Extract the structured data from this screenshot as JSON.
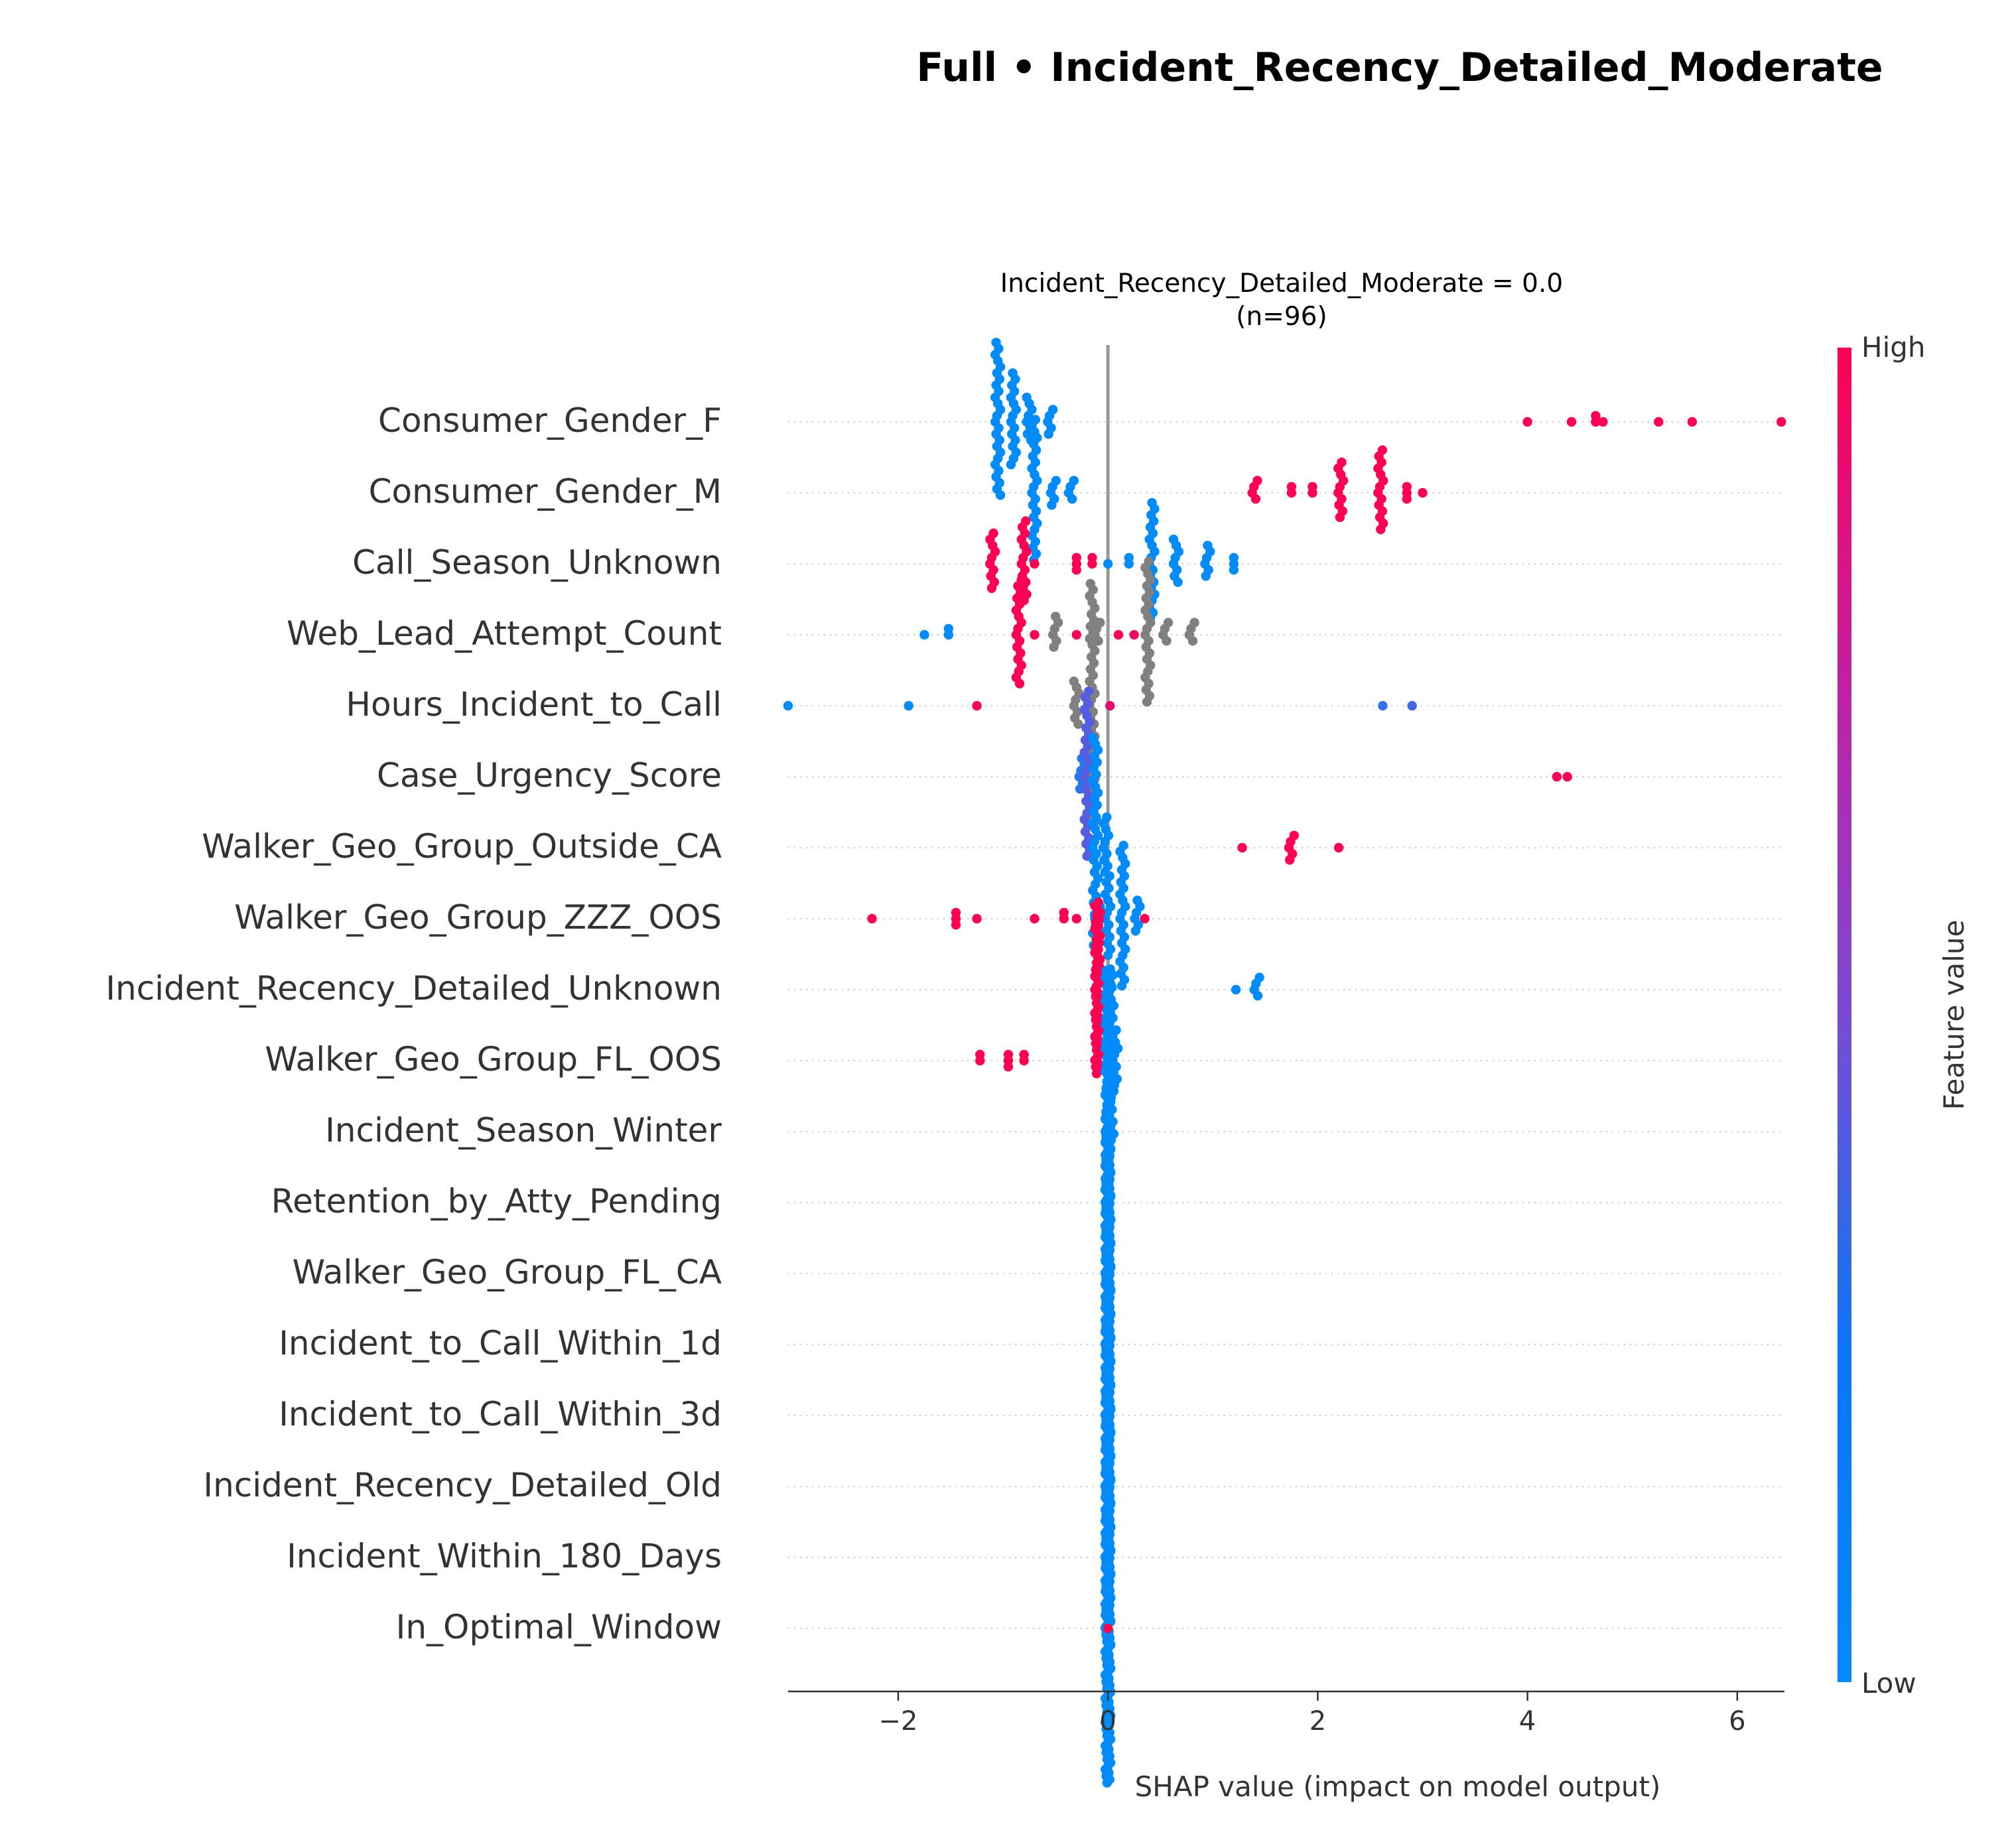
{
  "figure": {
    "suptitle": "Full • Incident_Recency_Detailed_Moderate"
  },
  "chart_data": {
    "type": "scatter",
    "subtype": "shap-beeswarm",
    "title_line1": "Incident_Recency_Detailed_Moderate = 0.0",
    "title_line2": "(n=96)",
    "xlabel": "SHAP value (impact on model output)",
    "xlim": [
      -3.05,
      6.45
    ],
    "xticks": [
      -2,
      0,
      2,
      4,
      6
    ],
    "xtick_labels": [
      "−2",
      "0",
      "2",
      "4",
      "6"
    ],
    "grid": false,
    "zero_line": true,
    "colorbar": {
      "label": "Feature value",
      "high_label": "High",
      "low_label": "Low",
      "low_color": "#008bfb",
      "high_color": "#ff0052"
    },
    "missing_color": "#808080",
    "features": [
      {
        "name": "Consumer_Gender_F",
        "groups": [
          {
            "c": 0.0,
            "pts": [
              [
                -1.05,
                26
              ],
              [
                -0.9,
                16
              ],
              [
                -0.75,
                8
              ],
              [
                -0.55,
                5
              ]
            ]
          },
          {
            "c": 1.0,
            "pts": [
              [
                4.0,
                1
              ],
              [
                4.42,
                1
              ],
              [
                4.65,
                2
              ],
              [
                4.72,
                1
              ],
              [
                5.25,
                1
              ],
              [
                5.57,
                1
              ],
              [
                6.42,
                1
              ]
            ]
          }
        ]
      },
      {
        "name": "Consumer_Gender_M",
        "groups": [
          {
            "c": 0.0,
            "pts": [
              [
                -0.7,
                24
              ],
              [
                -0.52,
                5
              ],
              [
                -0.35,
                4
              ]
            ]
          },
          {
            "c": 1.0,
            "pts": [
              [
                1.4,
                4
              ],
              [
                1.75,
                2
              ],
              [
                1.95,
                2
              ],
              [
                2.22,
                10
              ],
              [
                2.6,
                14
              ],
              [
                2.85,
                3
              ],
              [
                3.0,
                1
              ]
            ]
          }
        ]
      },
      {
        "name": "Call_Season_Unknown",
        "groups": [
          {
            "c": 1.0,
            "pts": [
              [
                -1.1,
                10
              ],
              [
                -0.8,
                14
              ],
              [
                -0.7,
                1
              ],
              [
                -0.3,
                3
              ],
              [
                -0.15,
                2
              ]
            ]
          },
          {
            "c": 0.0,
            "pts": [
              [
                0.0,
                1
              ],
              [
                0.2,
                2
              ],
              [
                0.42,
                20
              ],
              [
                0.65,
                8
              ],
              [
                0.95,
                6
              ],
              [
                1.2,
                3
              ]
            ]
          }
        ]
      },
      {
        "name": "Web_Lead_Attempt_Count",
        "groups": [
          {
            "c": 0.0,
            "pts": [
              [
                -1.75,
                1
              ],
              [
                -1.52,
                2
              ]
            ]
          },
          {
            "c": 1.0,
            "pts": [
              [
                -0.85,
                18
              ],
              [
                -0.7,
                1
              ],
              [
                -0.3,
                1
              ],
              [
                0.1,
                1
              ]
            ]
          },
          {
            "c": null,
            "pts": [
              [
                -0.5,
                6
              ],
              [
                -0.1,
                4
              ],
              [
                0.38,
                24
              ],
              [
                0.55,
                4
              ],
              [
                0.8,
                4
              ]
            ]
          },
          {
            "c": 0.92,
            "pts": [
              [
                0.25,
                1
              ]
            ]
          }
        ]
      },
      {
        "name": "Hours_Incident_to_Call",
        "groups": [
          {
            "c": 0.0,
            "pts": [
              [
                -3.05,
                1
              ],
              [
                -1.9,
                1
              ]
            ]
          },
          {
            "c": 1.0,
            "pts": [
              [
                -1.25,
                1
              ]
            ]
          },
          {
            "c": null,
            "pts": [
              [
                -0.15,
                40
              ],
              [
                -0.3,
                8
              ]
            ]
          },
          {
            "c": 0.9,
            "pts": [
              [
                0.02,
                1
              ]
            ]
          },
          {
            "c": 0.2,
            "pts": [
              [
                2.62,
                1
              ]
            ]
          },
          {
            "c": 0.28,
            "pts": [
              [
                2.9,
                1
              ]
            ]
          }
        ]
      },
      {
        "name": "Case_Urgency_Score",
        "groups": [
          {
            "c": 0.15,
            "pts": [
              [
                -0.25,
                6
              ]
            ]
          },
          {
            "c": 0.35,
            "pts": [
              [
                -0.2,
                28
              ]
            ]
          },
          {
            "c": 1.0,
            "pts": [
              [
                4.28,
                1
              ],
              [
                4.38,
                1
              ]
            ]
          }
        ]
      },
      {
        "name": "Walker_Geo_Group_Outside_CA",
        "groups": [
          {
            "c": 0.0,
            "pts": [
              [
                -0.12,
                36
              ],
              [
                -0.02,
                10
              ]
            ]
          },
          {
            "c": 1.0,
            "pts": [
              [
                1.28,
                1
              ],
              [
                1.75,
                5
              ],
              [
                2.2,
                1
              ]
            ]
          }
        ]
      },
      {
        "name": "Walker_Geo_Group_ZZZ_OOS",
        "groups": [
          {
            "c": 1.0,
            "pts": [
              [
                -2.25,
                1
              ],
              [
                -1.45,
                3
              ],
              [
                -1.25,
                1
              ],
              [
                -0.7,
                1
              ],
              [
                -0.42,
                2
              ],
              [
                -0.3,
                1
              ],
              [
                0.35,
                1
              ]
            ]
          },
          {
            "c": 0.0,
            "pts": [
              [
                -0.1,
                4
              ],
              [
                0.0,
                14
              ],
              [
                0.14,
                24
              ],
              [
                0.28,
                6
              ]
            ]
          }
        ]
      },
      {
        "name": "Incident_Recency_Detailed_Unknown",
        "groups": [
          {
            "c": 1.0,
            "pts": [
              [
                -0.1,
                52
              ]
            ]
          },
          {
            "c": 0.0,
            "pts": [
              [
                1.22,
                1
              ],
              [
                1.42,
                4
              ]
            ]
          }
        ]
      },
      {
        "name": "Walker_Geo_Group_FL_OOS",
        "groups": [
          {
            "c": 1.0,
            "pts": [
              [
                -1.22,
                2
              ],
              [
                -0.95,
                3
              ],
              [
                -0.8,
                2
              ]
            ]
          },
          {
            "c": 0.0,
            "pts": [
              [
                0.03,
                30
              ],
              [
                0.07,
                10
              ]
            ]
          }
        ]
      },
      {
        "name": "Incident_Season_Winter",
        "groups": [
          {
            "c": 0.0,
            "pts": [
              [
                0.0,
                96
              ]
            ]
          }
        ]
      },
      {
        "name": "Retention_by_Atty_Pending",
        "groups": [
          {
            "c": 0.0,
            "pts": [
              [
                0.0,
                96
              ]
            ]
          }
        ]
      },
      {
        "name": "Walker_Geo_Group_FL_CA",
        "groups": [
          {
            "c": 0.0,
            "pts": [
              [
                0.0,
                96
              ]
            ]
          }
        ]
      },
      {
        "name": "Incident_to_Call_Within_1d",
        "groups": [
          {
            "c": 0.0,
            "pts": [
              [
                0.0,
                96
              ]
            ]
          }
        ]
      },
      {
        "name": "Incident_to_Call_Within_3d",
        "groups": [
          {
            "c": 0.0,
            "pts": [
              [
                0.0,
                96
              ]
            ]
          }
        ]
      },
      {
        "name": "Incident_Recency_Detailed_Old",
        "groups": [
          {
            "c": 0.0,
            "pts": [
              [
                0.0,
                96
              ]
            ]
          }
        ]
      },
      {
        "name": "Incident_Within_180_Days",
        "groups": [
          {
            "c": 0.0,
            "pts": [
              [
                0.0,
                96
              ]
            ]
          }
        ]
      },
      {
        "name": "In_Optimal_Window",
        "groups": [
          {
            "c": 0.0,
            "pts": [
              [
                0.0,
                94
              ]
            ]
          },
          {
            "c": 1.0,
            "pts": [
              [
                0.0,
                1
              ]
            ]
          }
        ]
      }
    ]
  }
}
